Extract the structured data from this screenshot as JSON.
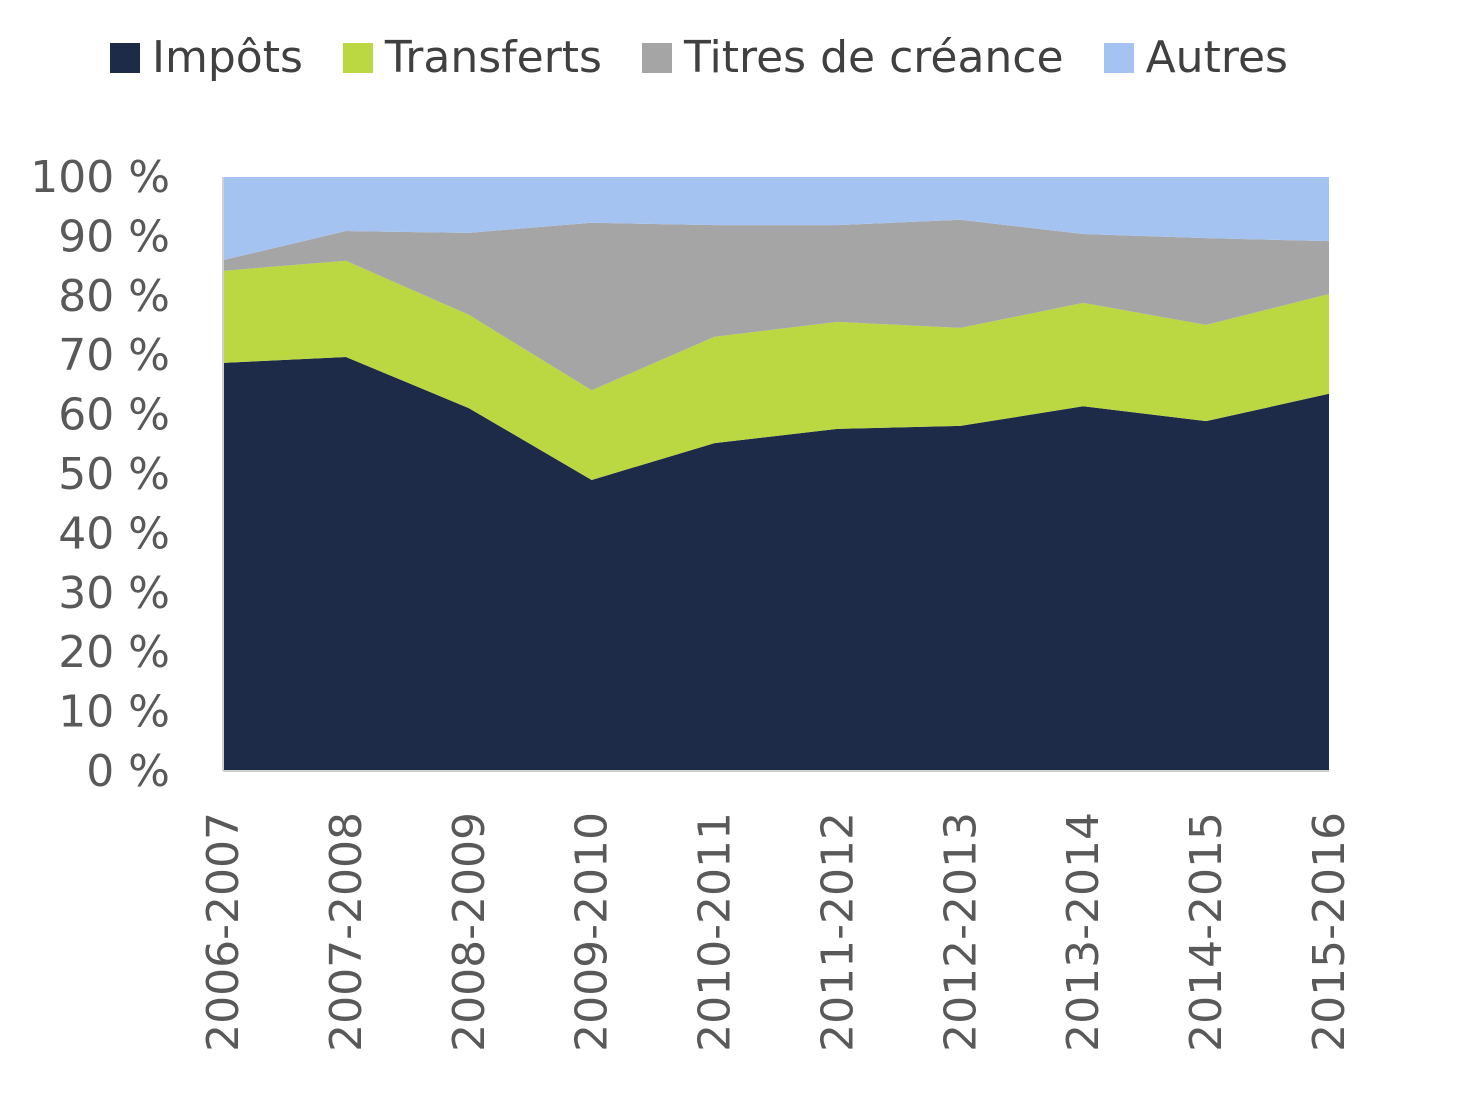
{
  "chart_data": {
    "type": "area",
    "stacked": true,
    "title": "",
    "xlabel": "",
    "ylabel": "",
    "ylim": [
      0,
      100
    ],
    "y_ticks": [
      "0 %",
      "10 %",
      "20 %",
      "30 %",
      "40 %",
      "50 %",
      "60 %",
      "70 %",
      "80 %",
      "90 %",
      "100 %"
    ],
    "legend_position": "top",
    "categories": [
      "2006-2007",
      "2007-2008",
      "2008-2009",
      "2009-2010",
      "2010-2011",
      "2011-2012",
      "2012-2013",
      "2013-2014",
      "2014-2015",
      "2015-2016"
    ],
    "series": [
      {
        "name": "Impôts",
        "color": "#1e2b48",
        "values": [
          68.7,
          69.7,
          61.1,
          49.0,
          55.2,
          57.6,
          58.1,
          61.4,
          58.9,
          63.5
        ]
      },
      {
        "name": "Transferts",
        "color": "#bbd742",
        "values": [
          15.5,
          16.2,
          15.7,
          15.1,
          17.9,
          18.0,
          16.5,
          17.4,
          16.2,
          16.8
        ]
      },
      {
        "name": "Titres de créance",
        "color": "#a5a5a5",
        "values": [
          1.8,
          5.0,
          13.8,
          28.2,
          18.8,
          16.3,
          18.2,
          11.6,
          14.6,
          8.9
        ]
      },
      {
        "name": "Autres",
        "color": "#a4c3f1",
        "values": [
          14.0,
          9.1,
          9.4,
          7.7,
          8.1,
          8.1,
          7.2,
          9.6,
          10.3,
          10.8
        ]
      }
    ]
  }
}
